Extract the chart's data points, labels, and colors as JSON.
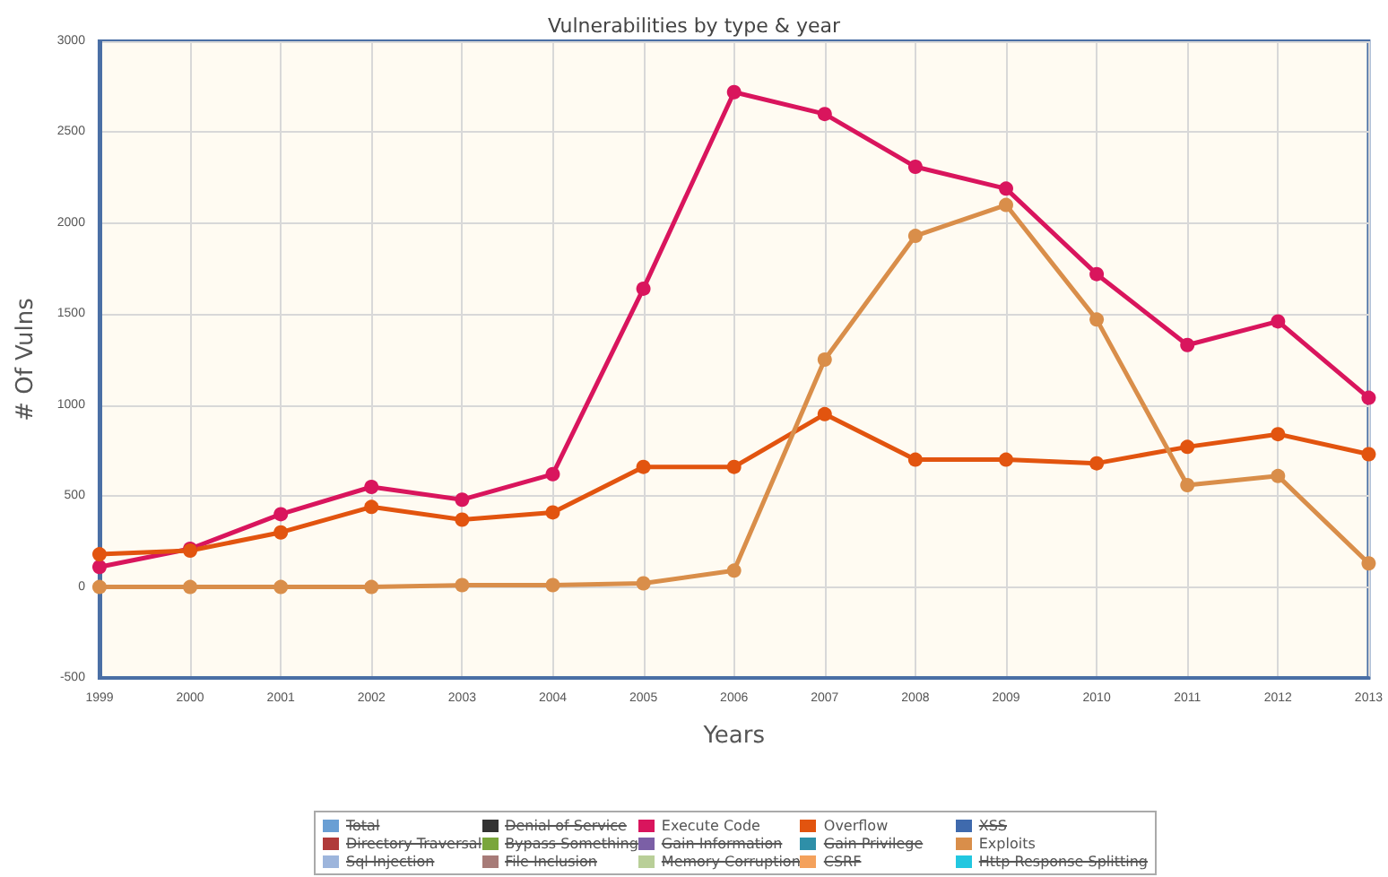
{
  "chart_data": {
    "type": "line",
    "title": "Vulnerabilities by type & year",
    "xlabel": "Years",
    "ylabel": "# Of Vulns",
    "x": [
      1999,
      2000,
      2001,
      2002,
      2003,
      2004,
      2005,
      2006,
      2007,
      2008,
      2009,
      2010,
      2011,
      2012,
      2013
    ],
    "xlim": [
      1999,
      2013
    ],
    "xticks": [
      1999,
      2000,
      2001,
      2002,
      2003,
      2004,
      2005,
      2006,
      2007,
      2008,
      2009,
      2010,
      2011,
      2012,
      2013
    ],
    "ylim": [
      -500,
      3000
    ],
    "yticks": [
      -500,
      0,
      500,
      1000,
      1500,
      2000,
      2500,
      3000
    ],
    "grid": true,
    "legend": "bottom",
    "marker": "circle",
    "line_style": "solid",
    "series": [
      {
        "name": "Total",
        "color": "#6a9fd4",
        "values": [
          null,
          null,
          null,
          null,
          null,
          null,
          null,
          null,
          null,
          null,
          null,
          null,
          null,
          null,
          null
        ]
      },
      {
        "name": "Denial of Service",
        "color": "#333333",
        "values": [
          null,
          null,
          null,
          null,
          null,
          null,
          null,
          null,
          null,
          null,
          null,
          null,
          null,
          null,
          null
        ]
      },
      {
        "name": "Execute Code",
        "color": "#d9155d",
        "values": [
          110,
          210,
          400,
          550,
          480,
          620,
          1640,
          2720,
          2600,
          2310,
          2190,
          1720,
          1330,
          1460,
          1040
        ]
      },
      {
        "name": "Overflow",
        "color": "#e2540f",
        "values": [
          180,
          200,
          300,
          440,
          370,
          410,
          660,
          660,
          950,
          700,
          700,
          680,
          770,
          840,
          730
        ]
      },
      {
        "name": "XSS",
        "color": "#3f6aad",
        "values": [
          null,
          null,
          null,
          null,
          null,
          null,
          null,
          null,
          null,
          null,
          null,
          null,
          null,
          null,
          null
        ]
      },
      {
        "name": "Directory Traversal",
        "color": "#b03a3a",
        "values": [
          null,
          null,
          null,
          null,
          null,
          null,
          null,
          null,
          null,
          null,
          null,
          null,
          null,
          null,
          null
        ]
      },
      {
        "name": "Bypass Something",
        "color": "#7aa63b",
        "values": [
          null,
          null,
          null,
          null,
          null,
          null,
          null,
          null,
          null,
          null,
          null,
          null,
          null,
          null,
          null
        ]
      },
      {
        "name": "Gain Information",
        "color": "#7b5fa6",
        "values": [
          null,
          null,
          null,
          null,
          null,
          null,
          null,
          null,
          null,
          null,
          null,
          null,
          null,
          null,
          null
        ]
      },
      {
        "name": "Gain Privilege",
        "color": "#2e8fa8",
        "values": [
          null,
          null,
          null,
          null,
          null,
          null,
          null,
          null,
          null,
          null,
          null,
          null,
          null,
          null,
          null
        ]
      },
      {
        "name": "Exploits",
        "color": "#d98e4a",
        "values": [
          0,
          0,
          0,
          0,
          10,
          10,
          20,
          90,
          1250,
          1930,
          2100,
          1470,
          560,
          610,
          130
        ]
      },
      {
        "name": "Sql Injection",
        "color": "#9db5dc",
        "values": [
          null,
          null,
          null,
          null,
          null,
          null,
          null,
          null,
          null,
          null,
          null,
          null,
          null,
          null,
          null
        ]
      },
      {
        "name": "File Inclusion",
        "color": "#a77b78",
        "values": [
          null,
          null,
          null,
          null,
          null,
          null,
          null,
          null,
          null,
          null,
          null,
          null,
          null,
          null,
          null
        ]
      },
      {
        "name": "Memory Corruption",
        "color": "#b9cf98",
        "values": [
          null,
          null,
          null,
          null,
          null,
          null,
          null,
          null,
          null,
          null,
          null,
          null,
          null,
          null,
          null
        ]
      },
      {
        "name": "CSRF",
        "color": "#f4a15c",
        "values": [
          null,
          null,
          null,
          null,
          null,
          null,
          null,
          null,
          null,
          null,
          null,
          null,
          null,
          null,
          null
        ]
      },
      {
        "name": "Http Response Splitting",
        "color": "#22c7e0",
        "values": [
          null,
          null,
          null,
          null,
          null,
          null,
          null,
          null,
          null,
          null,
          null,
          null,
          null,
          null,
          null
        ]
      }
    ]
  }
}
